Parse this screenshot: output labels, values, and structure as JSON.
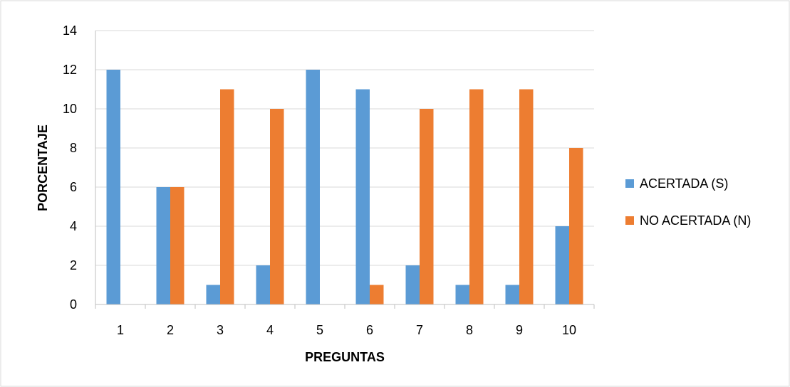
{
  "chart_data": {
    "type": "bar",
    "title": "",
    "xlabel": "PREGUNTAS",
    "ylabel": "PORCENTAJE",
    "categories": [
      "1",
      "2",
      "3",
      "4",
      "5",
      "6",
      "7",
      "8",
      "9",
      "10"
    ],
    "series": [
      {
        "name": "ACERTADA (S)",
        "color": "#5B9BD5",
        "values": [
          12,
          6,
          1,
          2,
          12,
          11,
          2,
          1,
          1,
          4
        ]
      },
      {
        "name": "NO ACERTADA (N)",
        "color": "#ED7D31",
        "values": [
          0,
          6,
          11,
          10,
          0,
          1,
          10,
          11,
          11,
          8
        ]
      }
    ],
    "ylim": [
      0,
      14
    ],
    "yticks": [
      "0",
      "2",
      "4",
      "6",
      "8",
      "10",
      "12",
      "14"
    ],
    "grid": true,
    "legend_position": "right"
  }
}
